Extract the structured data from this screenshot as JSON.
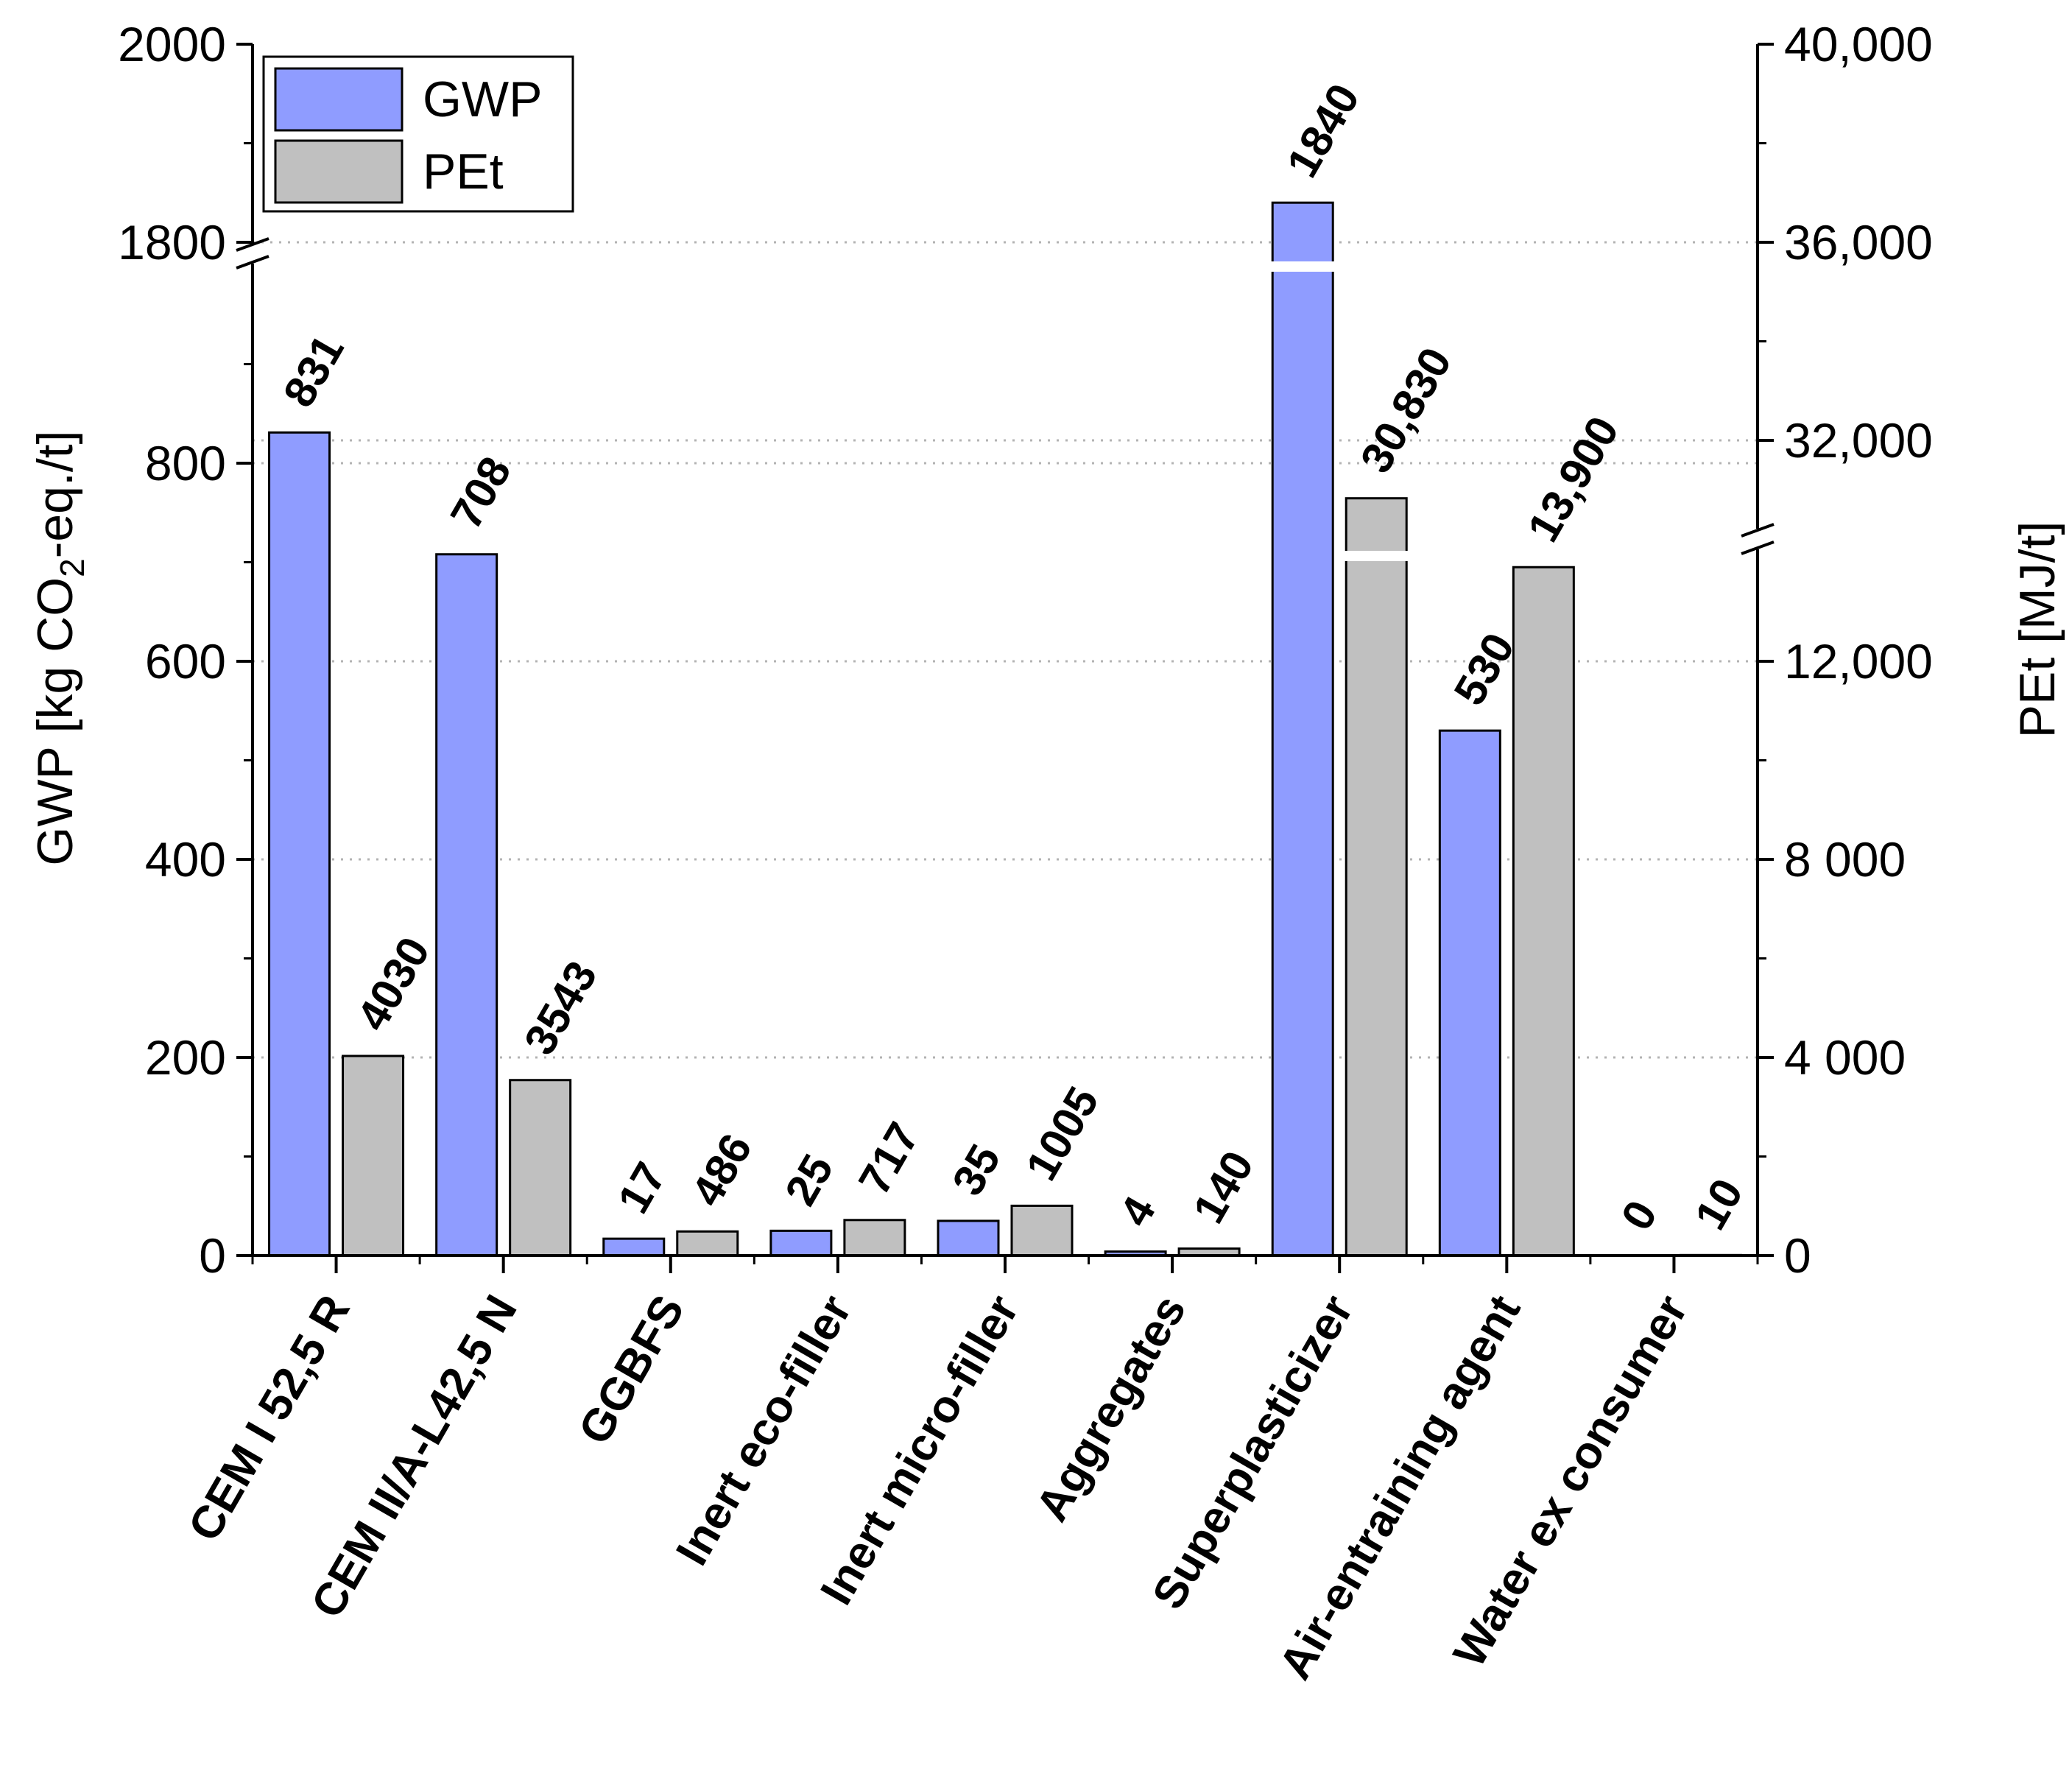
{
  "chart_data": {
    "type": "bar",
    "categories": [
      "CEM I 52,5 R",
      "CEM II/A-L42,5 N",
      "GGBFS",
      "Inert eco-filler",
      "Inert micro-filler",
      "Aggregates",
      "Superplasticizer",
      "Air-entraining agent",
      "Water ex consumer"
    ],
    "series": [
      {
        "name": "GWP",
        "axis": "left",
        "color": "#8f9cff",
        "values": [
          831,
          708,
          17,
          25,
          35,
          4,
          1840,
          530,
          0
        ],
        "labels": [
          "831",
          "708",
          "17",
          "25",
          "35",
          "4",
          "1840",
          "530",
          "0"
        ]
      },
      {
        "name": "PEt",
        "axis": "right",
        "color": "#c0c0c0",
        "values": [
          4030,
          3543,
          486,
          717,
          1005,
          140,
          30830,
          13900,
          10
        ],
        "labels": [
          "4030",
          "3543",
          "486",
          "717",
          "1005",
          "140",
          "30,830",
          "13,900",
          "10"
        ]
      }
    ],
    "left_axis": {
      "label_main": "GWP [kg CO",
      "label_sub": "2",
      "label_tail": "-eq./t]",
      "lower_range": [
        0,
        1000
      ],
      "upper_range": [
        1800,
        2000
      ],
      "ticks": [
        {
          "value": 0,
          "label": "0"
        },
        {
          "value": 200,
          "label": "200"
        },
        {
          "value": 400,
          "label": "400"
        },
        {
          "value": 600,
          "label": "600"
        },
        {
          "value": 800,
          "label": "800"
        },
        {
          "value": 1800,
          "label": "1800"
        },
        {
          "value": 2000,
          "label": "2000"
        }
      ],
      "break_between": [
        1000,
        1800
      ]
    },
    "right_axis": {
      "label": "PEt [MJ/t]",
      "lower_range": [
        0,
        14000
      ],
      "upper_range": [
        30000,
        40000
      ],
      "ticks": [
        {
          "value": 0,
          "label": "0"
        },
        {
          "value": 4000,
          "label": "4 000"
        },
        {
          "value": 8000,
          "label": "8 000"
        },
        {
          "value": 12000,
          "label": "12,000"
        },
        {
          "value": 32000,
          "label": "32,000"
        },
        {
          "value": 36000,
          "label": "36,000"
        },
        {
          "value": 40000,
          "label": "40,000"
        }
      ],
      "break_between": [
        14000,
        30000
      ]
    },
    "legend": {
      "position": "top-left",
      "entries": [
        "GWP",
        "PEt"
      ]
    },
    "grid": "horizontal dotted",
    "title": ""
  }
}
